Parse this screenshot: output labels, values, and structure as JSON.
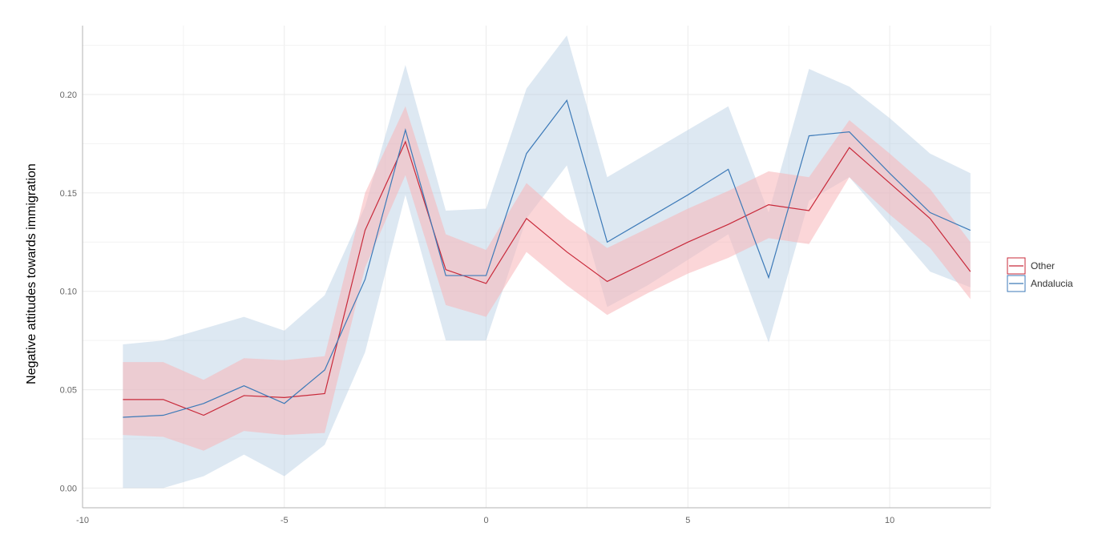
{
  "chart_data": {
    "type": "line",
    "title": "",
    "xlabel": "",
    "ylabel": "Negative attitudes towards immigration",
    "xlim": [
      -10,
      12.5
    ],
    "ylim": [
      -0.01,
      0.235
    ],
    "x_ticks": [
      -10,
      -5,
      0,
      5,
      10
    ],
    "x_tick_labels": [
      "-10",
      "-5",
      "0",
      "5",
      "10"
    ],
    "y_ticks": [
      0.0,
      0.05,
      0.1,
      0.15,
      0.2
    ],
    "y_tick_labels": [
      "0.00",
      "0.05",
      "0.10",
      "0.15",
      "0.20"
    ],
    "grid": true,
    "legend": "right",
    "x": [
      -9,
      -8,
      -7,
      -6,
      -5,
      -4,
      -3,
      -2,
      -1,
      0,
      1,
      2,
      3,
      4,
      5,
      6,
      7,
      8,
      9,
      10,
      11,
      12
    ],
    "series": [
      {
        "name": "Other",
        "color": "#c8293a",
        "band_color": "#f8b4b8",
        "values": [
          0.045,
          0.045,
          0.037,
          0.047,
          0.046,
          0.048,
          0.131,
          0.176,
          0.111,
          0.104,
          0.137,
          0.12,
          0.105,
          0.115,
          0.125,
          0.134,
          0.144,
          0.141,
          0.173,
          0.155,
          0.137,
          0.11
        ],
        "lower": [
          0.027,
          0.026,
          0.019,
          0.029,
          0.027,
          0.028,
          0.112,
          0.159,
          0.093,
          0.087,
          0.12,
          0.103,
          0.088,
          0.099,
          0.109,
          0.117,
          0.127,
          0.124,
          0.158,
          0.139,
          0.122,
          0.096
        ],
        "upper": [
          0.064,
          0.064,
          0.055,
          0.066,
          0.065,
          0.067,
          0.15,
          0.194,
          0.129,
          0.121,
          0.155,
          0.137,
          0.122,
          0.132,
          0.142,
          0.151,
          0.161,
          0.158,
          0.187,
          0.17,
          0.152,
          0.125
        ]
      },
      {
        "name": "Andalucia",
        "color": "#3d7ab8",
        "band_color": "#b3cde3",
        "values": [
          0.036,
          0.037,
          0.043,
          0.052,
          0.043,
          0.06,
          0.106,
          0.182,
          0.108,
          0.108,
          0.17,
          0.197,
          0.125,
          0.137,
          0.149,
          0.162,
          0.107,
          0.179,
          0.181,
          0.16,
          0.14,
          0.131
        ],
        "lower": [
          0.0,
          0.0,
          0.006,
          0.017,
          0.006,
          0.022,
          0.069,
          0.149,
          0.075,
          0.075,
          0.137,
          0.164,
          0.092,
          0.103,
          0.116,
          0.129,
          0.074,
          0.146,
          0.158,
          0.134,
          0.11,
          0.102
        ],
        "upper": [
          0.073,
          0.075,
          0.081,
          0.087,
          0.08,
          0.098,
          0.143,
          0.215,
          0.141,
          0.142,
          0.203,
          0.23,
          0.158,
          0.17,
          0.182,
          0.194,
          0.14,
          0.213,
          0.204,
          0.188,
          0.17,
          0.16
        ]
      }
    ]
  }
}
